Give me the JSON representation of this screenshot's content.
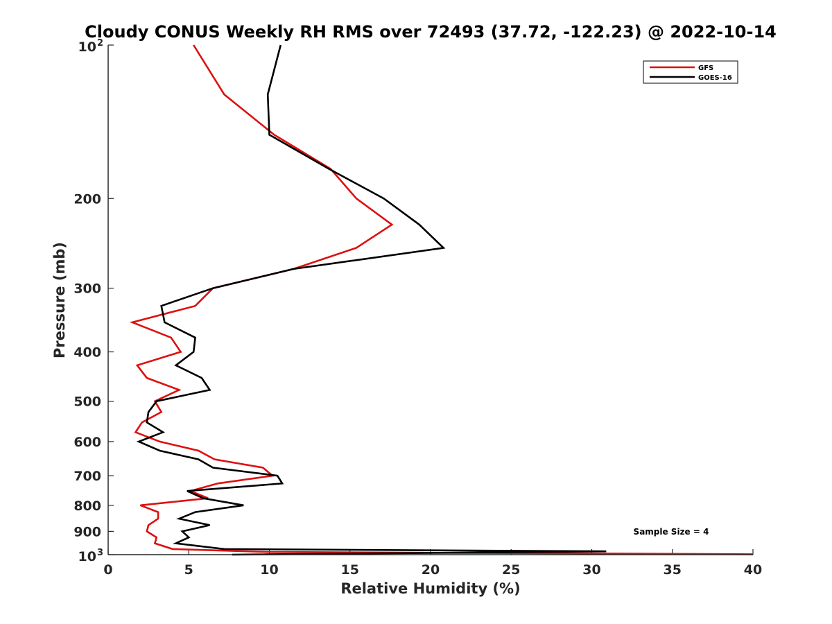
{
  "chart_data": {
    "type": "line",
    "title": "Cloudy CONUS Weekly RH RMS over 72493 (37.72, -122.23) @ 2022-10-14",
    "xlabel": "Relative Humidity (%)",
    "ylabel": "Pressure (mb)",
    "xlim": [
      0,
      40
    ],
    "ylim": [
      100,
      1000
    ],
    "y_scale": "log",
    "y_reversed": true,
    "x_ticks": [
      "0",
      "5",
      "10",
      "15",
      "20",
      "25",
      "30",
      "35",
      "40"
    ],
    "y_ticks": [
      {
        "value": 100,
        "base": "10",
        "exp": "2"
      },
      {
        "value": 200,
        "label": "200"
      },
      {
        "value": 300,
        "label": "300"
      },
      {
        "value": 400,
        "label": "400"
      },
      {
        "value": 500,
        "label": "500"
      },
      {
        "value": 600,
        "label": "600"
      },
      {
        "value": 700,
        "label": "700"
      },
      {
        "value": 800,
        "label": "800"
      },
      {
        "value": 900,
        "label": "900"
      },
      {
        "value": 1000,
        "base": "10",
        "exp": "3"
      }
    ],
    "legend": "top-right",
    "annotation": "Sample Size = 4",
    "series": [
      {
        "name": "GFS",
        "color": "#dd1010",
        "points": [
          [
            5.3,
            100
          ],
          [
            7.2,
            125
          ],
          [
            10.3,
            150
          ],
          [
            13.8,
            175
          ],
          [
            15.4,
            200
          ],
          [
            17.6,
            225
          ],
          [
            15.4,
            250
          ],
          [
            11.5,
            275
          ],
          [
            6.5,
            300
          ],
          [
            5.4,
            325
          ],
          [
            1.5,
            350
          ],
          [
            3.9,
            375
          ],
          [
            4.5,
            400
          ],
          [
            1.8,
            425
          ],
          [
            2.4,
            450
          ],
          [
            4.4,
            475
          ],
          [
            2.9,
            500
          ],
          [
            3.3,
            525
          ],
          [
            2.1,
            550
          ],
          [
            1.7,
            575
          ],
          [
            3.2,
            600
          ],
          [
            5.6,
            625
          ],
          [
            6.6,
            650
          ],
          [
            9.6,
            675
          ],
          [
            10.2,
            700
          ],
          [
            6.8,
            725
          ],
          [
            5.1,
            750
          ],
          [
            6.2,
            775
          ],
          [
            2.0,
            800
          ],
          [
            3.1,
            825
          ],
          [
            3.1,
            850
          ],
          [
            2.5,
            875
          ],
          [
            2.4,
            900
          ],
          [
            3.0,
            925
          ],
          [
            2.9,
            950
          ],
          [
            4.0,
            975
          ],
          [
            10.0,
            988
          ],
          [
            40.0,
            998
          ]
        ]
      },
      {
        "name": "GOES-16",
        "color": "#000000",
        "points": [
          [
            10.7,
            100
          ],
          [
            9.9,
            125
          ],
          [
            10.0,
            150
          ],
          [
            13.7,
            175
          ],
          [
            17.1,
            200
          ],
          [
            19.3,
            225
          ],
          [
            20.8,
            250
          ],
          [
            11.5,
            275
          ],
          [
            6.5,
            300
          ],
          [
            3.3,
            325
          ],
          [
            3.5,
            350
          ],
          [
            5.4,
            375
          ],
          [
            5.3,
            400
          ],
          [
            4.2,
            425
          ],
          [
            5.8,
            450
          ],
          [
            6.3,
            475
          ],
          [
            3.0,
            500
          ],
          [
            2.5,
            525
          ],
          [
            2.4,
            550
          ],
          [
            3.4,
            575
          ],
          [
            1.9,
            600
          ],
          [
            3.2,
            625
          ],
          [
            5.6,
            650
          ],
          [
            6.5,
            675
          ],
          [
            10.5,
            700
          ],
          [
            10.8,
            725
          ],
          [
            4.9,
            750
          ],
          [
            5.9,
            775
          ],
          [
            8.4,
            800
          ],
          [
            5.4,
            825
          ],
          [
            4.4,
            850
          ],
          [
            6.3,
            875
          ],
          [
            4.6,
            900
          ],
          [
            5.0,
            925
          ],
          [
            4.2,
            950
          ],
          [
            7.2,
            975
          ],
          [
            30.9,
            985
          ],
          [
            7.7,
            1000
          ]
        ]
      }
    ]
  }
}
